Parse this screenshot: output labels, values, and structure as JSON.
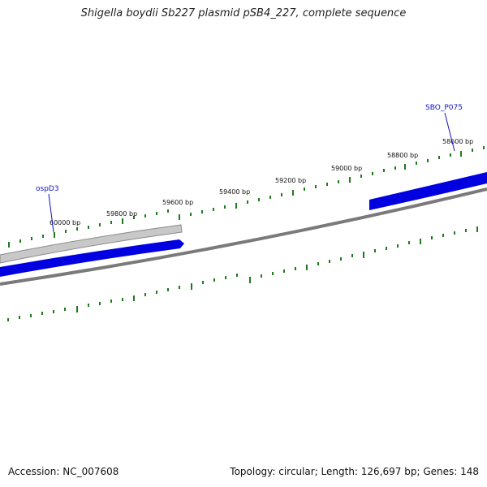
{
  "title": "Shigella boydii Sb227 plasmid pSB4_227, complete sequence",
  "accession": "Accession: NC_007608",
  "summary": "Topology: circular; Length: 126,697 bp; Genes: 148",
  "colors": {
    "backbone": "#7a7a7a",
    "forward_gene": "#0000e0",
    "reverse_gene_fill": "#c8c8c8",
    "ticks": "#1f7a1f",
    "gene_label": "#1010c8"
  },
  "tick_labels": [
    "60000 bp",
    "59800 bp",
    "59600 bp",
    "59400 bp",
    "59200 bp",
    "59000 bp",
    "58800 bp",
    "58600 bp"
  ],
  "gene_labels": [
    "ospD3",
    "SBO_P075"
  ]
}
